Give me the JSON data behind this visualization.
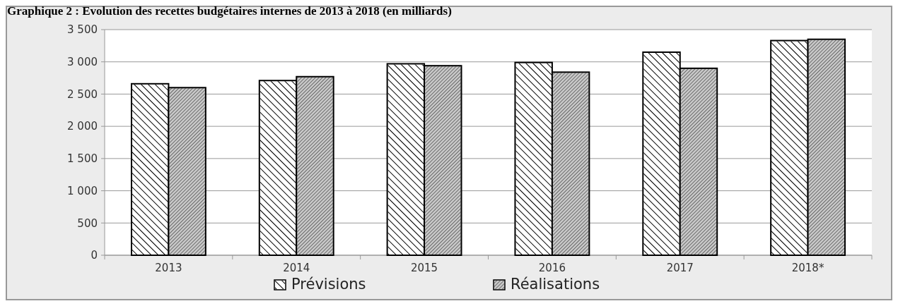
{
  "chart_data": {
    "type": "bar",
    "title": "Graphique 2 : Evolution des recettes budgétaires internes de 2013 à 2018 (en milliards)",
    "categories": [
      "2013",
      "2014",
      "2015",
      "2016",
      "2017",
      "2018*"
    ],
    "series": [
      {
        "name": "Prévisions",
        "color": "#ffffff",
        "values": [
          2660,
          2710,
          2970,
          2990,
          3150,
          3330
        ]
      },
      {
        "name": "Réalisations",
        "color": "#c8c8c8",
        "values": [
          2600,
          2770,
          2940,
          2840,
          2900,
          3350
        ]
      }
    ],
    "ylim": [
      0,
      3500
    ],
    "yticks": [
      {
        "value": 0,
        "label": "0"
      },
      {
        "value": 500,
        "label": "500"
      },
      {
        "value": 1000,
        "label": "1 000"
      },
      {
        "value": 1500,
        "label": "1 500"
      },
      {
        "value": 2000,
        "label": "2 000"
      },
      {
        "value": 2500,
        "label": "2 500"
      },
      {
        "value": 3000,
        "label": "3 000"
      },
      {
        "value": 3500,
        "label": "3 500"
      }
    ],
    "grid": "y",
    "legend": "bottom"
  }
}
